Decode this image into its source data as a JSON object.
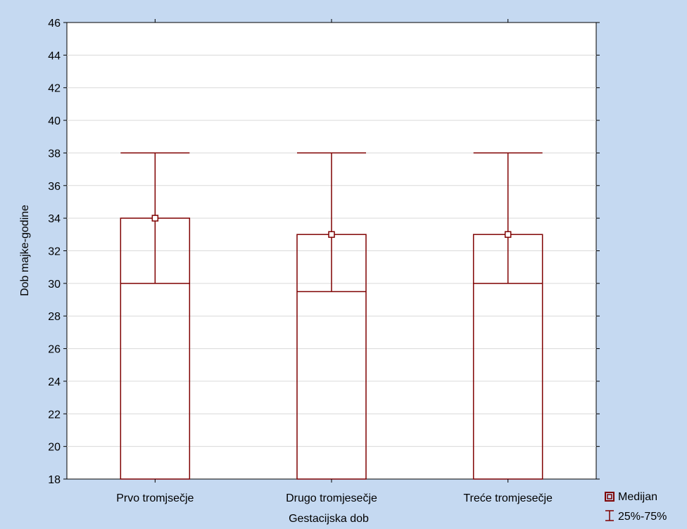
{
  "chart_data": {
    "type": "box",
    "title": "",
    "xlabel": "Gestacijska dob",
    "ylabel": "Dob majke-godine",
    "ylim": [
      18,
      46
    ],
    "yticks": [
      18,
      20,
      22,
      24,
      26,
      28,
      30,
      32,
      34,
      36,
      38,
      40,
      42,
      44,
      46
    ],
    "grid": true,
    "legend_position": "bottom-right",
    "categories": [
      "Prvo tromjsečje",
      "Drugo tromjesečje",
      "Treće tromjesečje"
    ],
    "series": [
      {
        "name": "Medijan",
        "values": [
          34,
          33,
          33
        ]
      },
      {
        "name": "25%-75%",
        "values": [
          [
            30,
            38
          ],
          [
            29.5,
            38
          ],
          [
            30,
            38
          ]
        ]
      }
    ],
    "colors": {
      "background": "#c5d9f1",
      "plot_background": "#ffffff",
      "box_stroke": "#7f0000",
      "grid": "#d9d9d9"
    }
  }
}
